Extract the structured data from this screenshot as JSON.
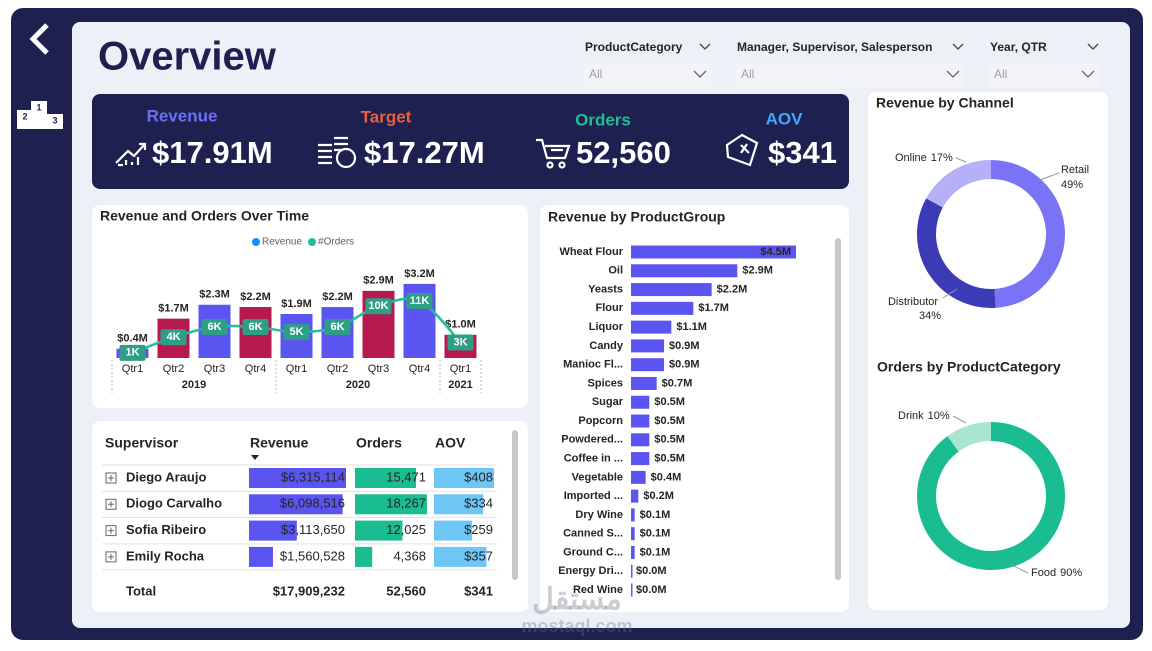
{
  "nav": {
    "podium": [
      "2",
      "1",
      "3"
    ]
  },
  "header": {
    "title": "Overview",
    "filters": [
      {
        "label": "ProductCategory",
        "value": "All"
      },
      {
        "label": "Manager, Supervisor, Salesperson",
        "value": "All"
      },
      {
        "label": "Year, QTR",
        "value": "All"
      }
    ]
  },
  "kpis": [
    {
      "label": "Revenue",
      "value": "$17.91M",
      "color": "#6b6ff5"
    },
    {
      "label": "Target",
      "value": "$17.27M",
      "color": "#e8603c"
    },
    {
      "label": "Orders",
      "value": "52,560",
      "color": "#1fbf9a"
    },
    {
      "label": "AOV",
      "value": "$341",
      "color": "#3fa9ff"
    }
  ],
  "chart_data": [
    {
      "type": "combo",
      "title": "Revenue and Orders Over Time",
      "categories": [
        "Qtr1",
        "Qtr2",
        "Qtr3",
        "Qtr4",
        "Qtr1",
        "Qtr2",
        "Qtr3",
        "Qtr4",
        "Qtr1"
      ],
      "category_groups": [
        {
          "label": "2019",
          "count": 4
        },
        {
          "label": "2020",
          "count": 4
        },
        {
          "label": "2021",
          "count": 1
        }
      ],
      "series": [
        {
          "name": "Revenue",
          "type": "bar",
          "color": "#118dff",
          "colors": [
            "#5a55f0",
            "#b5194f",
            "#5a55f0",
            "#b5194f",
            "#5a55f0",
            "#5a55f0",
            "#b5194f",
            "#5a55f0",
            "#b5194f"
          ],
          "values": [
            0.4,
            1.7,
            2.3,
            2.2,
            1.9,
            2.2,
            2.9,
            3.2,
            1.0
          ],
          "value_labels": [
            "$0.4M",
            "$1.7M",
            "$2.3M",
            "$2.2M",
            "$1.9M",
            "$2.2M",
            "$2.9M",
            "$3.2M",
            "$1.0M"
          ]
        },
        {
          "name": "#Orders",
          "type": "line",
          "axis": "y2",
          "color": "#1fbf9a",
          "values": [
            1000,
            4000,
            6000,
            6000,
            5000,
            6000,
            10000,
            11000,
            3000
          ],
          "value_labels": [
            "1K",
            "4K",
            "6K",
            "6K",
            "5K",
            "6K",
            "10K",
            "11K",
            "3K"
          ]
        }
      ],
      "ylim": [
        0,
        3.8
      ],
      "y2lim": [
        0,
        17000
      ]
    },
    {
      "type": "barh",
      "title": "Revenue by ProductGroup",
      "categories": [
        "Wheat Flour",
        "Oil",
        "Yeasts",
        "Flour",
        "Liquor",
        "Candy",
        "Manioc Fl...",
        "Spices",
        "Sugar",
        "Popcorn",
        "Powdered...",
        "Coffee in ...",
        "Vegetable",
        "Imported ...",
        "Dry Wine",
        "Canned S...",
        "Ground C...",
        "Energy Dri...",
        "Red Wine"
      ],
      "values": [
        4.5,
        2.9,
        2.2,
        1.7,
        1.1,
        0.9,
        0.9,
        0.7,
        0.5,
        0.5,
        0.5,
        0.5,
        0.4,
        0.2,
        0.1,
        0.1,
        0.1,
        0.0,
        0.0
      ],
      "value_labels": [
        "$4.5M",
        "$2.9M",
        "$2.2M",
        "$1.7M",
        "$1.1M",
        "$0.9M",
        "$0.9M",
        "$0.7M",
        "$0.5M",
        "$0.5M",
        "$0.5M",
        "$0.5M",
        "$0.4M",
        "$0.2M",
        "$0.1M",
        "$0.1M",
        "$0.1M",
        "$0.0M",
        "$0.0M"
      ],
      "color": "#5a55f0",
      "xlim": [
        0,
        4.5
      ]
    },
    {
      "type": "donut",
      "title": "Revenue by Channel",
      "categories": [
        "Retail",
        "Distributor",
        "Online"
      ],
      "values": [
        49,
        34,
        17
      ],
      "value_labels": [
        "49%",
        "34%",
        "17%"
      ],
      "colors": [
        "#7a73f6",
        "#3b3bb5",
        "#b4b1f8"
      ]
    },
    {
      "type": "donut",
      "title": "Orders by ProductCategory",
      "categories": [
        "Food",
        "Drink"
      ],
      "values": [
        90,
        10
      ],
      "value_labels": [
        "90%",
        "10%"
      ],
      "colors": [
        "#1abc91",
        "#a8e6cf"
      ]
    }
  ],
  "table": {
    "columns": [
      "Supervisor",
      "Revenue",
      "Orders",
      "AOV"
    ],
    "bar_colors": [
      "#5a55f0",
      "#1abc91",
      "#6ec6f5"
    ],
    "rows": [
      {
        "name": "Diego Araujo",
        "cells": [
          {
            "value": 6315114,
            "label": "$6,315,114"
          },
          {
            "value": 15471,
            "label": "15,471"
          },
          {
            "value": 408,
            "label": "$408"
          }
        ]
      },
      {
        "name": "Diogo Carvalho",
        "cells": [
          {
            "value": 6098516,
            "label": "$6,098,516"
          },
          {
            "value": 18267,
            "label": "18,267"
          },
          {
            "value": 334,
            "label": "$334"
          }
        ]
      },
      {
        "name": "Sofia Ribeiro",
        "cells": [
          {
            "value": 3113650,
            "label": "$3,113,650"
          },
          {
            "value": 12025,
            "label": "12,025"
          },
          {
            "value": 259,
            "label": "$259"
          }
        ]
      },
      {
        "name": "Emily Rocha",
        "cells": [
          {
            "value": 1560528,
            "label": "$1,560,528"
          },
          {
            "value": 4368,
            "label": "4,368"
          },
          {
            "value": 357,
            "label": "$357"
          }
        ]
      }
    ],
    "total": {
      "name": "Total",
      "cells": [
        "$17,909,232",
        "52,560",
        "$341"
      ]
    }
  },
  "watermark": {
    "arabic": "مستقل",
    "latin": "mostaql.com"
  }
}
